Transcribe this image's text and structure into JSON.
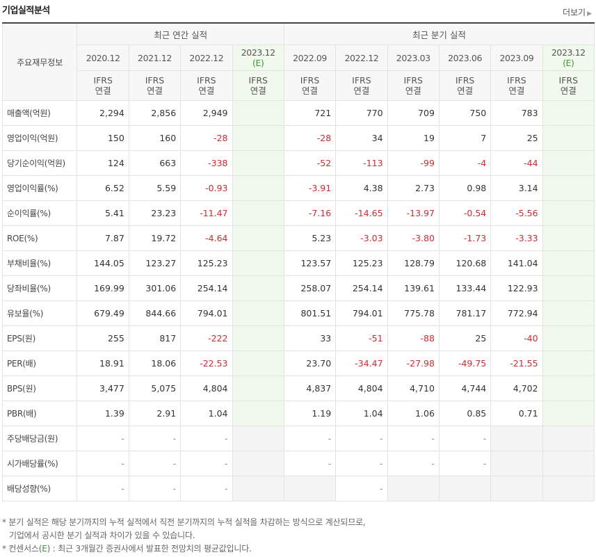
{
  "header": {
    "title": "기업실적분석",
    "more_label": "더보기"
  },
  "table": {
    "corner_label": "주요재무정보",
    "group_annual": "최근 연간 실적",
    "group_quarter": "최근 분기 실적",
    "periods": [
      "2020.12",
      "2021.12",
      "2022.12",
      "2023.12",
      "2022.09",
      "2022.12",
      "2023.03",
      "2023.06",
      "2023.09",
      "2023.12"
    ],
    "estimate_mark": "(E)",
    "ifrs_line1": "IFRS",
    "ifrs_line2": "연결",
    "rows": [
      {
        "label": "매출액(억원)",
        "values": [
          "2,294",
          "2,856",
          "2,949",
          "",
          "721",
          "770",
          "709",
          "750",
          "783",
          ""
        ]
      },
      {
        "label": "영업이익(억원)",
        "values": [
          "150",
          "160",
          "-28",
          "",
          "-28",
          "34",
          "19",
          "7",
          "25",
          ""
        ]
      },
      {
        "label": "당기순이익(억원)",
        "values": [
          "124",
          "663",
          "-338",
          "",
          "-52",
          "-113",
          "-99",
          "-4",
          "-44",
          ""
        ]
      },
      {
        "label": "영업이익률(%)",
        "values": [
          "6.52",
          "5.59",
          "-0.93",
          "",
          "-3.91",
          "4.38",
          "2.73",
          "0.98",
          "3.14",
          ""
        ]
      },
      {
        "label": "순이익률(%)",
        "values": [
          "5.41",
          "23.23",
          "-11.47",
          "",
          "-7.16",
          "-14.65",
          "-13.97",
          "-0.54",
          "-5.56",
          ""
        ]
      },
      {
        "label": "ROE(%)",
        "values": [
          "7.87",
          "19.72",
          "-4.64",
          "",
          "5.23",
          "-3.03",
          "-3.80",
          "-1.73",
          "-3.33",
          ""
        ]
      },
      {
        "label": "부채비율(%)",
        "values": [
          "144.05",
          "123.27",
          "125.23",
          "",
          "123.57",
          "125.23",
          "128.79",
          "120.68",
          "141.04",
          ""
        ]
      },
      {
        "label": "당좌비율(%)",
        "values": [
          "169.99",
          "301.06",
          "254.14",
          "",
          "258.07",
          "254.14",
          "139.61",
          "133.44",
          "122.93",
          ""
        ]
      },
      {
        "label": "유보율(%)",
        "values": [
          "679.49",
          "844.66",
          "794.01",
          "",
          "801.51",
          "794.01",
          "775.78",
          "781.17",
          "772.94",
          ""
        ]
      },
      {
        "label": "EPS(원)",
        "values": [
          "255",
          "817",
          "-222",
          "",
          "33",
          "-51",
          "-88",
          "25",
          "-40",
          ""
        ]
      },
      {
        "label": "PER(배)",
        "values": [
          "18.91",
          "18.06",
          "-22.53",
          "",
          "23.70",
          "-34.47",
          "-27.98",
          "-49.75",
          "-21.55",
          ""
        ]
      },
      {
        "label": "BPS(원)",
        "values": [
          "3,477",
          "5,075",
          "4,804",
          "",
          "4,837",
          "4,804",
          "4,710",
          "4,744",
          "4,702",
          ""
        ]
      },
      {
        "label": "PBR(배)",
        "values": [
          "1.39",
          "2.91",
          "1.04",
          "",
          "1.19",
          "1.04",
          "1.06",
          "0.85",
          "0.71",
          ""
        ]
      },
      {
        "label": "주당배당금(원)",
        "values": [
          "-",
          "-",
          "-",
          "",
          "-",
          "-",
          "-",
          "-",
          "",
          ""
        ]
      },
      {
        "label": "시가배당률(%)",
        "values": [
          "-",
          "-",
          "-",
          "",
          "-",
          "-",
          "-",
          "-",
          "",
          ""
        ]
      },
      {
        "label": "배당성향(%)",
        "values": [
          "-",
          "-",
          "-",
          "",
          "",
          "-",
          "",
          "",
          "",
          ""
        ]
      }
    ],
    "separator_before_rows": [
      3,
      6,
      9,
      13
    ]
  },
  "notes": {
    "line1": "* 분기 실적은 해당 분기까지의 누적 실적에서 직전 분기까지의 누적 실적을 차감하는 방식으로 계산되므로,",
    "line2": "기업에서 공시한 분기 실적과 차이가 있을 수 있습니다.",
    "line3_prefix": "* 컨센서스(",
    "line3_mark": "E",
    "line3_suffix": ") : 최근 3개월간 증권사에서 발표한 전망치의 평균값입니다."
  },
  "colors": {
    "negative": "#e0262d",
    "ifrs": "#e8872a",
    "estimate_shade": "#f1f8ec",
    "estimate_text": "#3a9a3a"
  }
}
